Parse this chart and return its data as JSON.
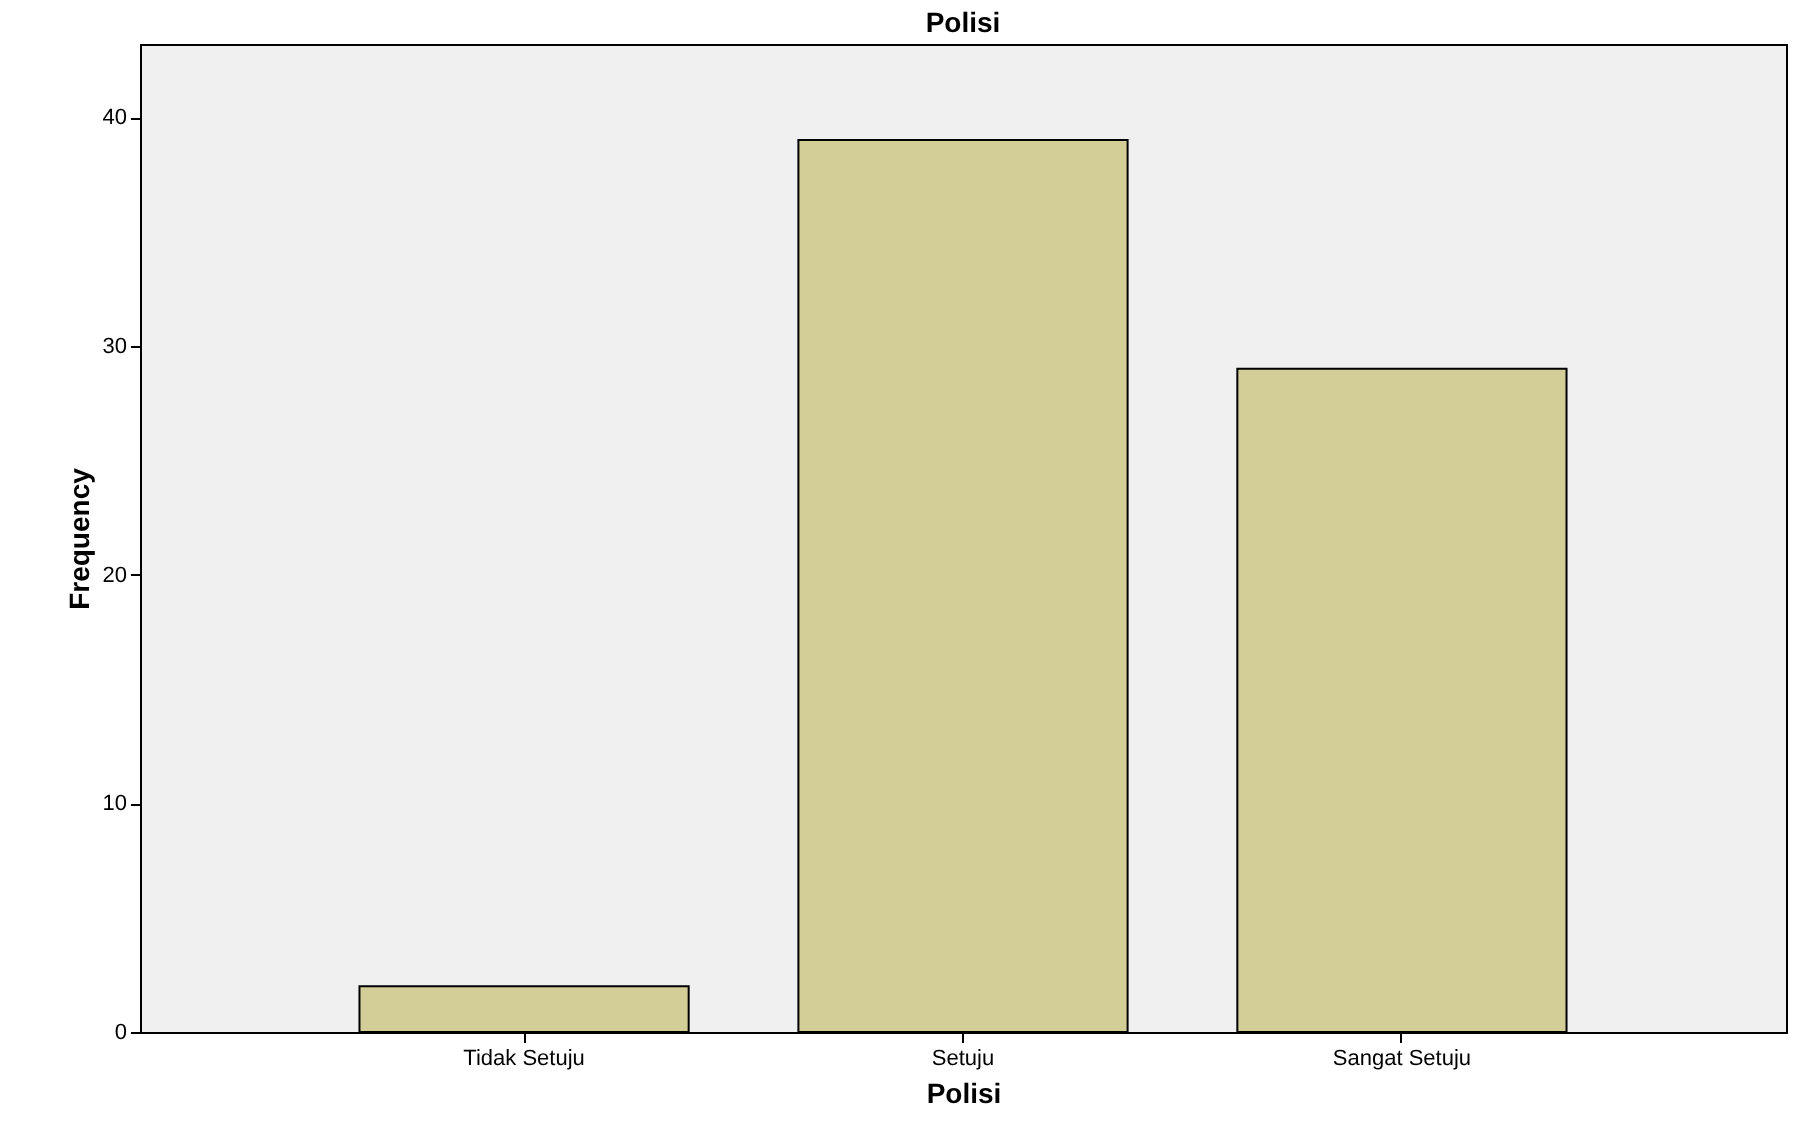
{
  "chart_data": {
    "type": "bar",
    "title": "Polisi",
    "xlabel": "Polisi",
    "ylabel": "Frequency",
    "categories": [
      "Tidak Setuju",
      "Setuju",
      "Sangat Setuju"
    ],
    "values": [
      2,
      39,
      29
    ],
    "color": "#d3cd98",
    "ylim": [
      0,
      43.2
    ],
    "yticks": [
      0,
      10,
      20,
      30,
      40
    ]
  }
}
